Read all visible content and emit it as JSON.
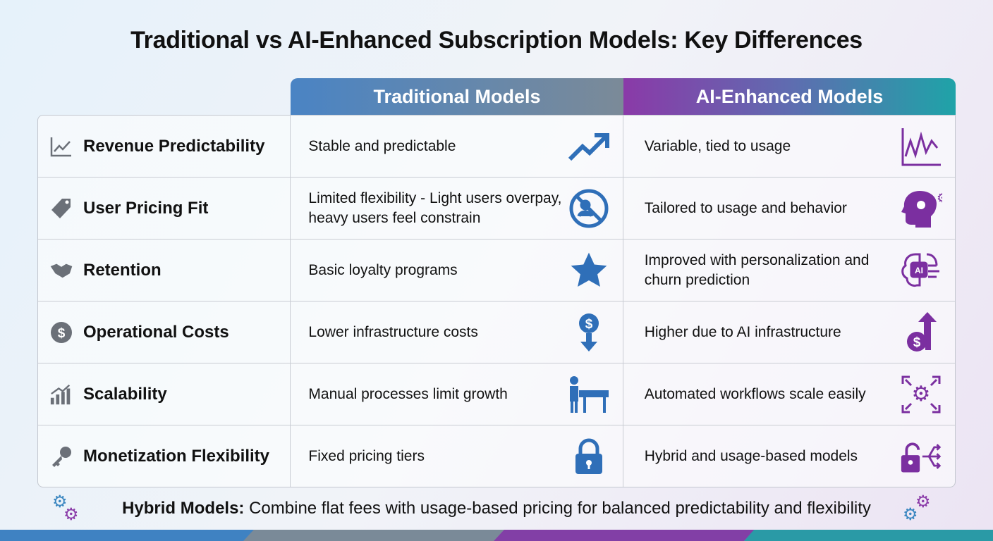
{
  "title": "Traditional vs AI-Enhanced Subscription Models: Key Differences",
  "headers": {
    "traditional": "Traditional Models",
    "ai": "AI-Enhanced Models"
  },
  "colors": {
    "traditional": "#2f6fb8",
    "ai": "#7b2fa0",
    "header_traditional": "#4a84c4",
    "header_ai": "#8a3aa8",
    "teal": "#1fa3a8"
  },
  "rows": [
    {
      "label": "Revenue Predictability",
      "icon": "line-chart-icon",
      "traditional": "Stable and predictable",
      "traditional_icon": "trend-up-arrow-icon",
      "ai": "Variable, tied to usage",
      "ai_icon": "volatile-chart-icon"
    },
    {
      "label": "User Pricing Fit",
      "icon": "price-tag-icon",
      "traditional": "Limited flexibility - Light users overpay, heavy users feel constrain",
      "traditional_icon": "no-users-icon",
      "ai": "Tailored to usage and behavior",
      "ai_icon": "head-gear-icon"
    },
    {
      "label": "Retention",
      "icon": "handshake-icon",
      "traditional": "Basic loyalty programs",
      "traditional_icon": "star-icon",
      "ai": "Improved with personalization and churn prediction",
      "ai_icon": "ai-brain-icon"
    },
    {
      "label": "Operational Costs",
      "icon": "dollar-coin-icon",
      "traditional": "Lower infrastructure costs",
      "traditional_icon": "dollar-down-arrow-icon",
      "ai": "Higher due to AI infrastructure",
      "ai_icon": "dollar-up-arrow-icon"
    },
    {
      "label": "Scalability",
      "icon": "bar-chart-growth-icon",
      "traditional": "Manual processes limit growth",
      "traditional_icon": "person-barrier-icon",
      "ai": "Automated workflows scale easily",
      "ai_icon": "robot-arm-gear-icon"
    },
    {
      "label": "Monetization Flexibility",
      "icon": "key-icon",
      "traditional": "Fixed pricing tiers",
      "traditional_icon": "lock-icon",
      "ai": "Hybrid and usage-based models",
      "ai_icon": "unlock-arrows-icon"
    }
  ],
  "footer": {
    "bold": "Hybrid Models:",
    "text": " Combine flat fees with usage-based pricing for balanced predictability and flexibility"
  }
}
